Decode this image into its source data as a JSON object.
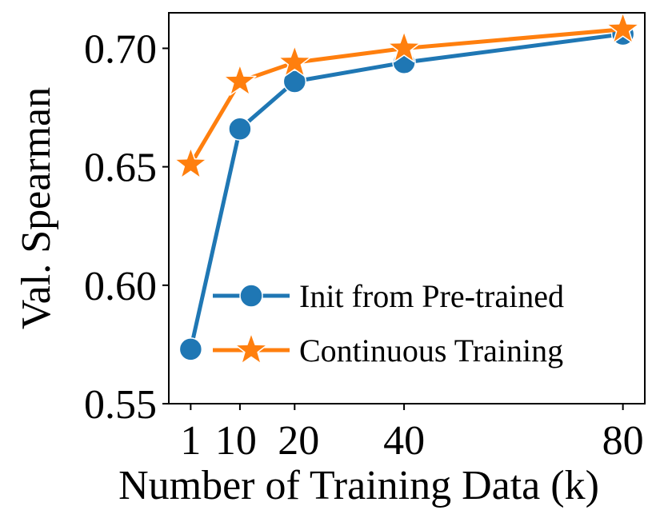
{
  "chart_data": {
    "type": "line",
    "title": "",
    "xlabel": "Number of Training Data (k)",
    "ylabel": "Val. Spearman",
    "x": [
      1,
      10,
      20,
      40,
      80
    ],
    "x_ticks": [
      "1",
      "10",
      "20",
      "40",
      "80"
    ],
    "y_ticks": [
      "0.55",
      "0.60",
      "0.65",
      "0.70"
    ],
    "xlim": [
      -3,
      84
    ],
    "ylim": [
      0.55,
      0.715
    ],
    "grid": false,
    "legend_position": "lower-right",
    "series": [
      {
        "name": "Init from Pre-trained",
        "values": [
          0.573,
          0.666,
          0.686,
          0.694,
          0.706
        ],
        "color": "#1f77b4",
        "marker": "circle"
      },
      {
        "name": "Continuous Training",
        "values": [
          0.651,
          0.686,
          0.694,
          0.7,
          0.708
        ],
        "color": "#ff7f0e",
        "marker": "star"
      }
    ]
  }
}
